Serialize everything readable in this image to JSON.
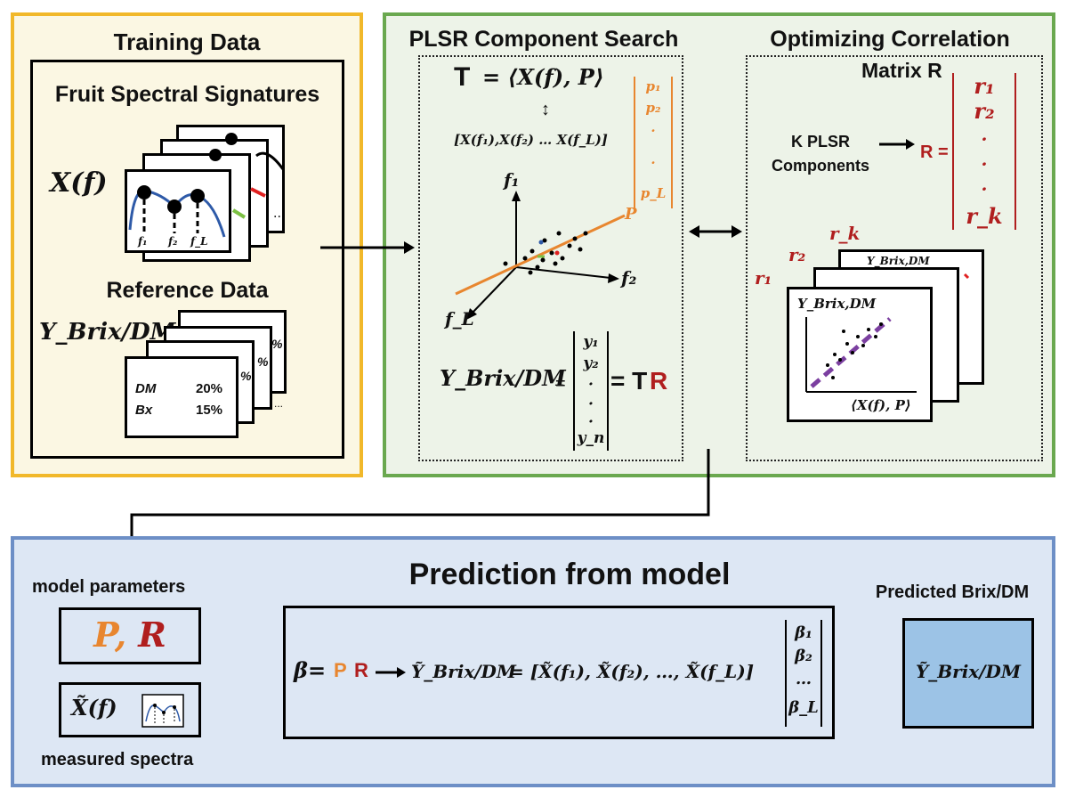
{
  "colors": {
    "training_border": "#f1b82a",
    "training_fill": "#fbf7e3",
    "plsr_border": "#6aa84f",
    "plsr_fill": "#edf3e8",
    "prediction_border": "#6d8fc6",
    "prediction_fill": "#dde7f4",
    "output_fill": "#9cc3e6",
    "orange": "#e8862f",
    "red": "#b01e1e",
    "purple": "#7b3fa0"
  },
  "training": {
    "title": "Training Data",
    "fruit_heading": "Fruit Spectral Signatures",
    "x_of_f": "X(f)",
    "f1": "f₁",
    "f2": "f₂",
    "fL": "f_L",
    "reference_heading": "Reference Data",
    "y_brix": "Y_Brix/DM",
    "dm_label": "DM",
    "dm_value": "20%",
    "bx_label": "Bx",
    "bx_value": "15%",
    "pct": "%",
    "dots": "..."
  },
  "plsr": {
    "title": "PLSR Component Search",
    "t_label": "T",
    "t_rhs": "= ⟨X(f), P⟩",
    "vector_row": "[X(f₁),X(f₂) … X(f_L)]",
    "p_vector": [
      "p₁",
      "p₂",
      "·",
      "·",
      "p_L"
    ],
    "axis_f1": "f₁",
    "axis_f2": "f₂",
    "axis_fL": "f_L",
    "axis_P": "P",
    "y_label": "Y_Brix/DM",
    "eq": "=",
    "y_vector": [
      "y₁",
      "y₂",
      "·",
      "·",
      "·",
      "y_n"
    ],
    "eq_rhs_T": "= T",
    "eq_rhs_R": "R"
  },
  "correlation": {
    "title": "Optimizing Correlation",
    "matrix_title": "Matrix R",
    "k_plsr": "K PLSR\nComponents",
    "r_eq": "R =",
    "r_vector": [
      "r₁",
      "r₂",
      "·",
      "·",
      "·",
      "r_k"
    ],
    "r1": "r₁",
    "r2": "r₂",
    "rk": "r_k",
    "plot_ylabel": "Y_Brix,DM",
    "plot_xlabel": "⟨X(f), P⟩"
  },
  "prediction": {
    "title": "Prediction from model",
    "model_params": "model parameters",
    "params_box": "P, R",
    "params_P": "P",
    "params_R": "R",
    "measured_symbol": "X̃(f)",
    "measured_label": "measured spectra",
    "beta_eq": "β=",
    "beta_P": "P",
    "beta_R": "R",
    "result_lhs": "Ỹ_Brix/DM",
    "result_rhs": "= [X̃(f₁), X̃(f₂), …, X̃(f_L)]",
    "beta_vector": [
      "β₁",
      "β₂",
      "…",
      "β_L"
    ],
    "output_title": "Predicted Brix/DM",
    "output_value": "Ỹ_Brix/DM"
  }
}
